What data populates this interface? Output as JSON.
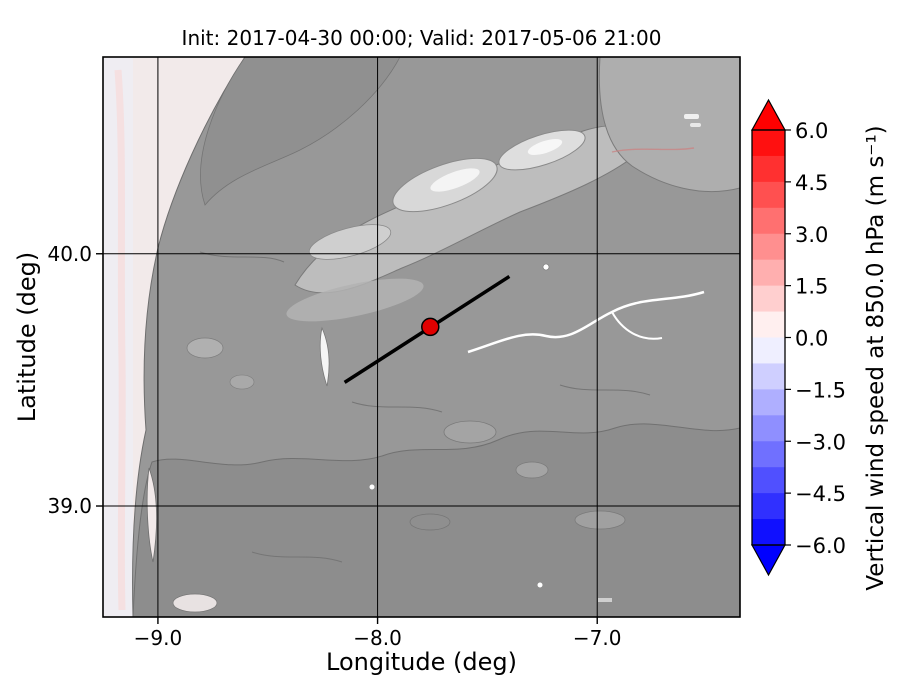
{
  "chart_data": {
    "type": "heatmap",
    "title": "Init: 2017-04-30 00:00; Valid: 2017-05-06 21:00",
    "xlabel": "Longitude (deg)",
    "ylabel": "Latitude (deg)",
    "xlim": [
      -9.25,
      -6.35
    ],
    "ylim": [
      38.56,
      40.78
    ],
    "xticks": [
      -9.0,
      -8.0,
      -7.0
    ],
    "yticks": [
      40.0,
      39.0
    ],
    "grid": true,
    "colorbar": {
      "label": "Vertical wind speed at 850.0 hPa (m s⁻¹)",
      "ticks": [
        6.0,
        4.5,
        3.0,
        1.5,
        0.0,
        -1.5,
        -3.0,
        -4.5,
        -6.0
      ],
      "vmin": -6.0,
      "vmax": 6.0,
      "band_step": 0.75,
      "cmap": "bwr",
      "extend": "both",
      "color_positive_max": "#ff0000",
      "color_zero": "#ffffff",
      "color_negative_max": "#0000ff"
    },
    "annotations": {
      "cross_section_line": {
        "x": [
          -8.15,
          -7.4
        ],
        "y": [
          39.49,
          39.91
        ],
        "color": "#000000",
        "width": 3.5
      },
      "marker": {
        "x": -7.76,
        "y": 39.71,
        "color": "#e00000",
        "edge": "#000000",
        "size": 8.5
      }
    },
    "field_summary": "Vertical wind speed near 0 m s⁻¹ over the whole mapped domain (pale/white fill); grayscale terrain shading of central Portugal beneath, light strip of ocean along the western (left) edge"
  }
}
